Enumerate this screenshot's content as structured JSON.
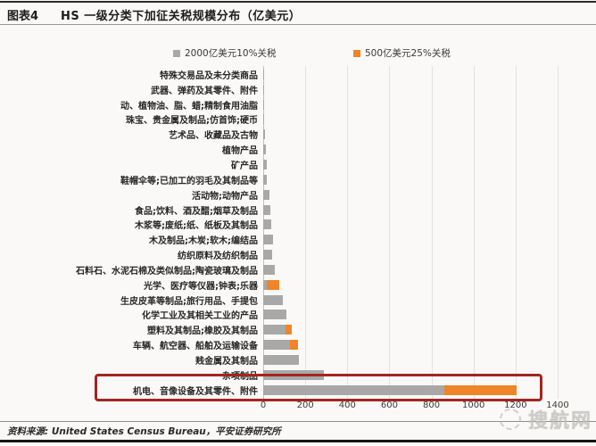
{
  "header": {
    "figure_tag": "图表4",
    "title": "HS 一级分类下加征关税规模分布（亿美元）"
  },
  "legend": [
    {
      "label": "2000亿美元10%关税",
      "color": "#a8a8a8"
    },
    {
      "label": "500亿美元25%关税",
      "color": "#ef8428"
    }
  ],
  "chart_data": {
    "type": "bar",
    "orientation": "horizontal-stacked",
    "title": "HS 一级分类下加征关税规模分布（亿美元）",
    "unit": "亿美元",
    "xlim": [
      0,
      1400
    ],
    "x_ticks": [
      0,
      200,
      400,
      600,
      800,
      1000,
      1200,
      1400
    ],
    "grid": true,
    "legend_position": "top",
    "series_names": [
      "2000亿美元10%关税",
      "500亿美元25%关税"
    ],
    "rows": [
      {
        "label": "特殊交易品及未分类商品",
        "values": [
          2,
          0
        ]
      },
      {
        "label": "武器、弹药及其零件、附件",
        "values": [
          2,
          0
        ]
      },
      {
        "label": "动、植物油、脂、蜡;精制食用油脂",
        "values": [
          3,
          0
        ]
      },
      {
        "label": "珠宝、贵金属及制品;仿首饰;硬币",
        "values": [
          5,
          0
        ]
      },
      {
        "label": "艺术品、收藏品及古物",
        "values": [
          7,
          0
        ]
      },
      {
        "label": "植物产品",
        "values": [
          12,
          0
        ]
      },
      {
        "label": "矿产品",
        "values": [
          16,
          0
        ]
      },
      {
        "label": "鞋帽伞等;已加工的羽毛及其制品等",
        "values": [
          18,
          0
        ]
      },
      {
        "label": "活动物;动物产品",
        "values": [
          28,
          0
        ]
      },
      {
        "label": "食品;饮料、酒及醋;烟草及制品",
        "values": [
          35,
          0
        ]
      },
      {
        "label": "木浆等;废纸;纸、纸板及其制品",
        "values": [
          40,
          0
        ]
      },
      {
        "label": "木及制品;木炭;软木;编结品",
        "values": [
          46,
          0
        ]
      },
      {
        "label": "纺织原料及纺织制品",
        "values": [
          42,
          0
        ]
      },
      {
        "label": "石料石、水泥石棉及类似制品;陶瓷玻璃及制品",
        "values": [
          57,
          0
        ]
      },
      {
        "label": "光学、医疗等仪器;钟表;乐器",
        "values": [
          15,
          62
        ]
      },
      {
        "label": "生皮皮革等制品;旅行用品、手提包",
        "values": [
          92,
          0
        ]
      },
      {
        "label": "化学工业及其相关工业的产品",
        "values": [
          110,
          0
        ]
      },
      {
        "label": "塑料及其制品;橡胶及其制品",
        "values": [
          105,
          30
        ]
      },
      {
        "label": "车辆、航空器、船舶及运输设备",
        "values": [
          128,
          36
        ]
      },
      {
        "label": "贱金属及其制品",
        "values": [
          170,
          0
        ]
      },
      {
        "label": "杂项制品",
        "values": [
          290,
          0
        ]
      },
      {
        "label": "机电、音像设备及其零件、附件",
        "values": [
          860,
          345
        ],
        "highlighted": true
      }
    ]
  },
  "source": {
    "text": "资料来源: United States Census Bureau，平安证券研究所"
  },
  "watermark": {
    "text": "搜航网"
  },
  "colors": {
    "bar_gray": "#a8a8a8",
    "bar_orange": "#ef8428",
    "highlight_box": "#a32521"
  }
}
